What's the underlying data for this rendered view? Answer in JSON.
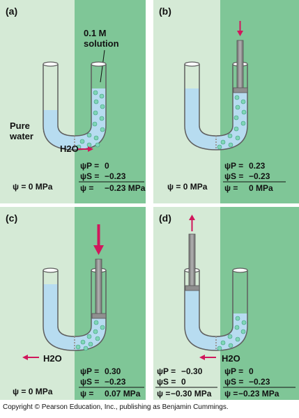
{
  "panels": {
    "a": {
      "letter": "(a)",
      "solution_label": [
        "0.1 M",
        "solution"
      ],
      "pure_water_label": [
        "Pure",
        "water"
      ],
      "h2o": "H2O",
      "left_psi": "ψ = 0 MPa",
      "right_psi": {
        "p": [
          "ψP =",
          "0"
        ],
        "s": [
          "ψS =",
          "−0.23"
        ],
        "total": [
          "ψ =",
          "−0.23 MPa"
        ]
      }
    },
    "b": {
      "letter": "(b)",
      "left_psi": "ψ = 0 MPa",
      "right_psi": {
        "p": [
          "ψP =",
          "0.23"
        ],
        "s": [
          "ψS =",
          "−0.23"
        ],
        "total": [
          "ψ =",
          "0 MPa"
        ]
      }
    },
    "c": {
      "letter": "(c)",
      "h2o": "H2O",
      "left_psi": "ψ = 0 MPa",
      "right_psi": {
        "p": [
          "ψP =",
          "0.30"
        ],
        "s": [
          "ψS =",
          "−0.23"
        ],
        "total": [
          "ψ =",
          "0.07 MPa"
        ]
      }
    },
    "d": {
      "letter": "(d)",
      "h2o": "H2O",
      "left_psi": {
        "p": [
          "ψP =",
          "−0.30"
        ],
        "s": [
          "ψS =",
          "0"
        ],
        "total": [
          "ψ =",
          "−0.30 MPa"
        ]
      },
      "right_psi": {
        "p": [
          "ψP =",
          "0"
        ],
        "s": [
          "ψS =",
          "−0.23"
        ],
        "total": [
          "ψ =",
          "−0.23 MPa"
        ]
      }
    }
  },
  "copyright": "Copyright © Pearson Education, Inc., publishing as Benjamin Cummings.",
  "colors": {
    "light_green": "#d5ead6",
    "dark_green": "#7fc697",
    "water": "#b7dcf0",
    "solute": "#7fd6b6",
    "arrow": "#d0175c",
    "piston": "#8f8f8f"
  }
}
